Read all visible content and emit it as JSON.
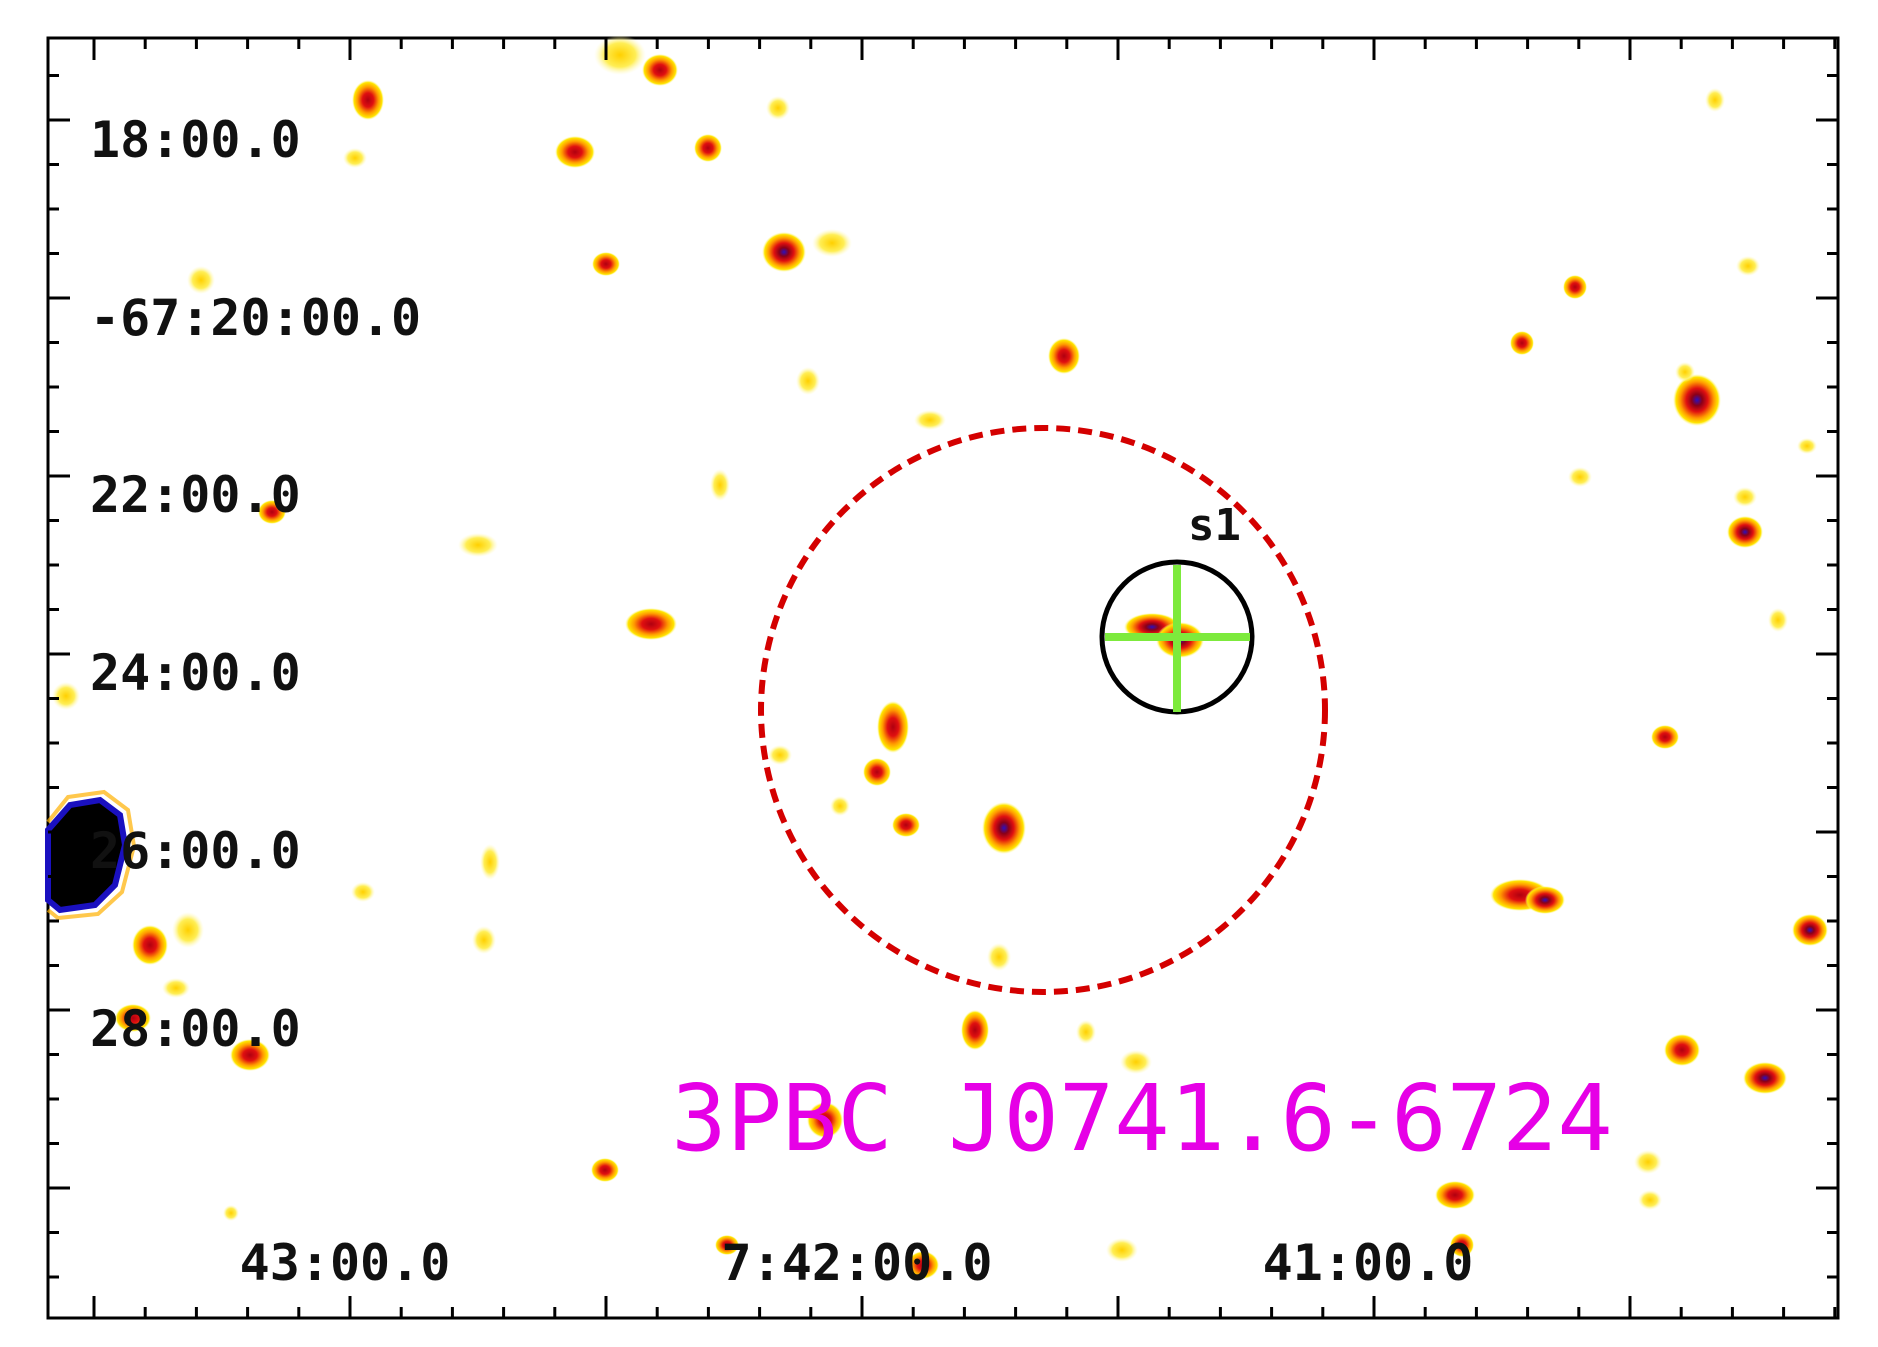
{
  "image": {
    "kind": "sky-map cutout",
    "colormap": [
      "#fffaa0",
      "#ffe600",
      "#ff9a00",
      "#e01010",
      "#a00010",
      "#2a10c0",
      "#000000"
    ]
  },
  "axes": {
    "dec_labels": [
      "18:00.0",
      "-67:20:00.0",
      "22:00.0",
      "24:00.0",
      "26:00.0",
      "28:00.0"
    ],
    "ra_labels": [
      "43:00.0",
      "7:42:00.0",
      "41:00.0"
    ]
  },
  "regions": {
    "error_ellipse": {
      "color": "#d40000",
      "style": "dashed"
    },
    "source_circle": {
      "color": "#000000"
    },
    "crosshair": {
      "color": "#7dea3c"
    }
  },
  "source_label": "s1",
  "title": "3PBC J0741.6-6724",
  "title_color": "#e600e6"
}
